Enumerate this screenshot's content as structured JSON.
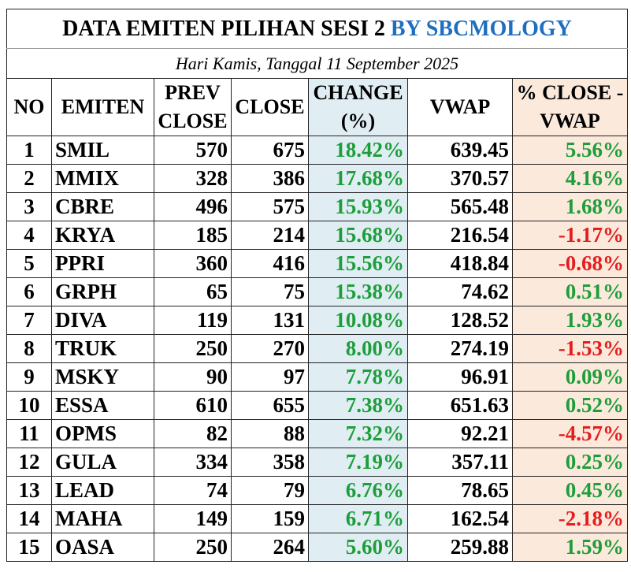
{
  "title": {
    "main": "DATA EMITEN PILIHAN SESI 2",
    "by": "BY SBCMOLOGY"
  },
  "subtitle": "Hari Kamis, Tanggal 11 September 2025",
  "headers": {
    "no": "NO",
    "emiten": "EMITEN",
    "prev_close": "PREV CLOSE",
    "close": "CLOSE",
    "change": "CHANGE (%)",
    "vwap": "VWAP",
    "pct_close_vwap": "% CLOSE - VWAP"
  },
  "colors": {
    "positive": "#1e9e3a",
    "negative": "#e41e1e",
    "change_bg": "#e0eef4",
    "pct_bg": "#fbe9dc",
    "title_by": "#1f6fc0"
  },
  "rows": [
    {
      "no": "1",
      "emiten": "SMIL",
      "prev_close": "570",
      "close": "675",
      "change": "18.42%",
      "vwap": "639.45",
      "pct": "5.56%",
      "sign": "pos"
    },
    {
      "no": "2",
      "emiten": "MMIX",
      "prev_close": "328",
      "close": "386",
      "change": "17.68%",
      "vwap": "370.57",
      "pct": "4.16%",
      "sign": "pos"
    },
    {
      "no": "3",
      "emiten": "CBRE",
      "prev_close": "496",
      "close": "575",
      "change": "15.93%",
      "vwap": "565.48",
      "pct": "1.68%",
      "sign": "pos"
    },
    {
      "no": "4",
      "emiten": "KRYA",
      "prev_close": "185",
      "close": "214",
      "change": "15.68%",
      "vwap": "216.54",
      "pct": "-1.17%",
      "sign": "neg"
    },
    {
      "no": "5",
      "emiten": "PPRI",
      "prev_close": "360",
      "close": "416",
      "change": "15.56%",
      "vwap": "418.84",
      "pct": "-0.68%",
      "sign": "neg"
    },
    {
      "no": "6",
      "emiten": "GRPH",
      "prev_close": "65",
      "close": "75",
      "change": "15.38%",
      "vwap": "74.62",
      "pct": "0.51%",
      "sign": "pos"
    },
    {
      "no": "7",
      "emiten": "DIVA",
      "prev_close": "119",
      "close": "131",
      "change": "10.08%",
      "vwap": "128.52",
      "pct": "1.93%",
      "sign": "pos"
    },
    {
      "no": "8",
      "emiten": "TRUK",
      "prev_close": "250",
      "close": "270",
      "change": "8.00%",
      "vwap": "274.19",
      "pct": "-1.53%",
      "sign": "neg"
    },
    {
      "no": "9",
      "emiten": "MSKY",
      "prev_close": "90",
      "close": "97",
      "change": "7.78%",
      "vwap": "96.91",
      "pct": "0.09%",
      "sign": "pos"
    },
    {
      "no": "10",
      "emiten": "ESSA",
      "prev_close": "610",
      "close": "655",
      "change": "7.38%",
      "vwap": "651.63",
      "pct": "0.52%",
      "sign": "pos"
    },
    {
      "no": "11",
      "emiten": "OPMS",
      "prev_close": "82",
      "close": "88",
      "change": "7.32%",
      "vwap": "92.21",
      "pct": "-4.57%",
      "sign": "neg"
    },
    {
      "no": "12",
      "emiten": "GULA",
      "prev_close": "334",
      "close": "358",
      "change": "7.19%",
      "vwap": "357.11",
      "pct": "0.25%",
      "sign": "pos"
    },
    {
      "no": "13",
      "emiten": "LEAD",
      "prev_close": "74",
      "close": "79",
      "change": "6.76%",
      "vwap": "78.65",
      "pct": "0.45%",
      "sign": "pos"
    },
    {
      "no": "14",
      "emiten": "MAHA",
      "prev_close": "149",
      "close": "159",
      "change": "6.71%",
      "vwap": "162.54",
      "pct": "-2.18%",
      "sign": "neg"
    },
    {
      "no": "15",
      "emiten": "OASA",
      "prev_close": "250",
      "close": "264",
      "change": "5.60%",
      "vwap": "259.88",
      "pct": "1.59%",
      "sign": "pos"
    }
  ]
}
